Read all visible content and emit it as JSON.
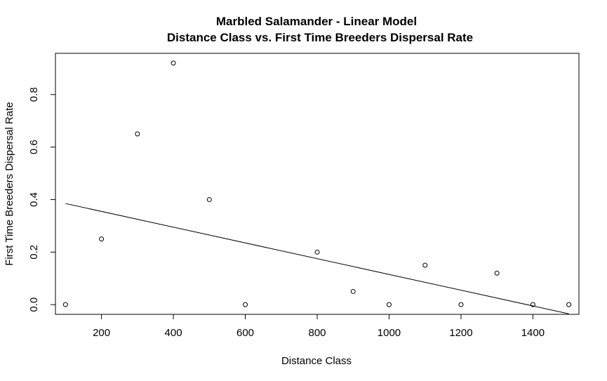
{
  "chart_data": {
    "type": "scatter",
    "title": "Marbled Salamander - Linear Model",
    "subtitle": "Distance Class vs. First Time Breeders Dispersal Rate",
    "xlabel": "Distance Class",
    "ylabel": "First Time Breeders Dispersal Rate",
    "xlim": [
      72,
      1528
    ],
    "ylim": [
      -0.037,
      0.957
    ],
    "x_ticks": [
      200,
      400,
      600,
      800,
      1000,
      1200,
      1400
    ],
    "x_tick_labels": [
      "200",
      "400",
      "600",
      "800",
      "1000",
      "1200",
      "1400"
    ],
    "y_ticks": [
      0.0,
      0.2,
      0.4,
      0.6,
      0.8
    ],
    "y_tick_labels": [
      "0.0",
      "0.2",
      "0.4",
      "0.6",
      "0.8"
    ],
    "grid": false,
    "points": {
      "x": [
        100,
        200,
        300,
        400,
        500,
        600,
        800,
        900,
        1000,
        1100,
        1200,
        1300,
        1400,
        1500
      ],
      "y": [
        0.0,
        0.25,
        0.65,
        0.92,
        0.4,
        0.0,
        0.2,
        0.05,
        0.0,
        0.15,
        0.0,
        0.12,
        0.0,
        0.0
      ]
    },
    "fit_line": {
      "x": [
        100,
        1500
      ],
      "y": [
        0.385,
        -0.035
      ]
    }
  }
}
